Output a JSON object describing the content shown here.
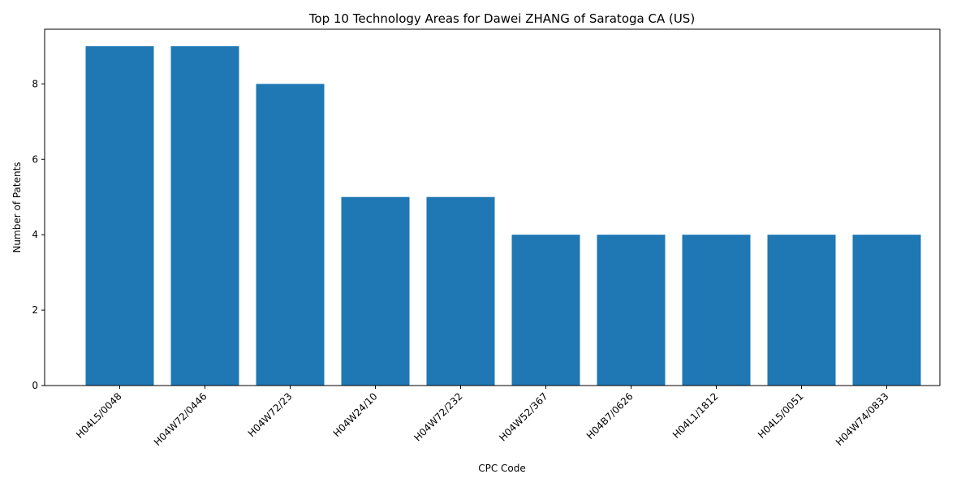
{
  "chart_data": {
    "type": "bar",
    "title": "Top 10 Technology Areas for Dawei ZHANG of Saratoga CA (US)",
    "xlabel": "CPC Code",
    "ylabel": "Number of Patents",
    "categories": [
      "H04L5/0048",
      "H04W72/0446",
      "H04W72/23",
      "H04W24/10",
      "H04W72/232",
      "H04W52/367",
      "H04B7/0626",
      "H04L1/1812",
      "H04L5/0051",
      "H04W74/0833"
    ],
    "values": [
      9,
      9,
      8,
      5,
      5,
      4,
      4,
      4,
      4,
      4
    ],
    "yticks": [
      "0",
      "2",
      "4",
      "6",
      "8"
    ],
    "ylim": [
      0,
      9.45
    ],
    "bar_color": "#1f77b4",
    "grid": false,
    "legend": "none"
  }
}
